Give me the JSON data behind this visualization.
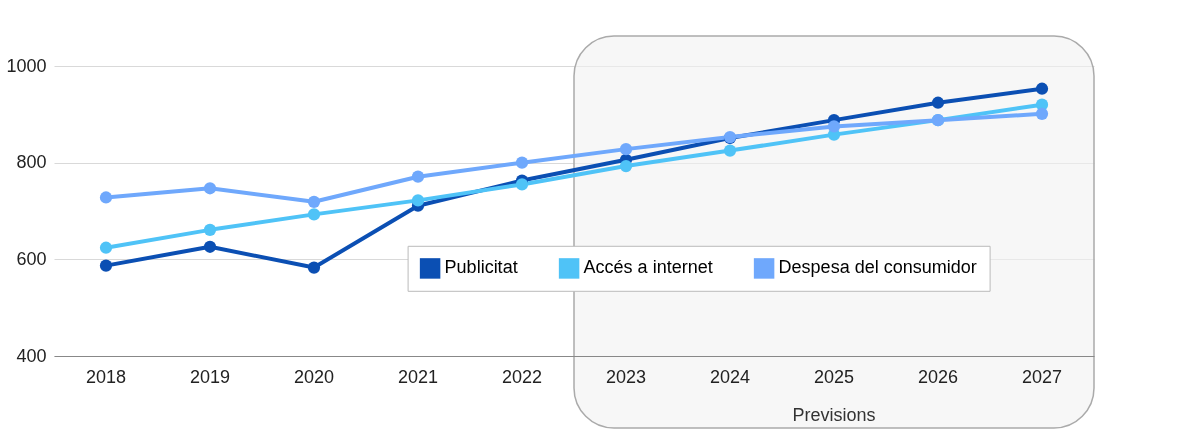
{
  "chart_data": {
    "type": "line",
    "categories": [
      "2018",
      "2019",
      "2020",
      "2021",
      "2022",
      "2023",
      "2024",
      "2025",
      "2026",
      "2027"
    ],
    "series": [
      {
        "name": "Publicitat",
        "color": "#0b4fb3",
        "values": [
          587,
          626,
          583,
          711,
          763,
          806,
          851,
          888,
          924,
          953
        ]
      },
      {
        "name": "Accés a internet",
        "color": "#4fc3f7",
        "values": [
          624,
          661,
          693,
          722,
          755,
          793,
          825,
          858,
          888,
          920
        ]
      },
      {
        "name": "Despesa del consumidor",
        "color": "#6fa8fc",
        "values": [
          728,
          747,
          719,
          771,
          800,
          828,
          853,
          875,
          888,
          901
        ]
      }
    ],
    "ylim": [
      400,
      1000
    ],
    "yticks": [
      400,
      600,
      800,
      1000
    ],
    "grid": "y",
    "marker": "circle",
    "line_style": "solid",
    "legend": "bottom",
    "bands": [
      {
        "axis": "x",
        "from": "2023",
        "to": "2027",
        "label": "Previsions",
        "color": "#f2f2f2"
      }
    ]
  }
}
